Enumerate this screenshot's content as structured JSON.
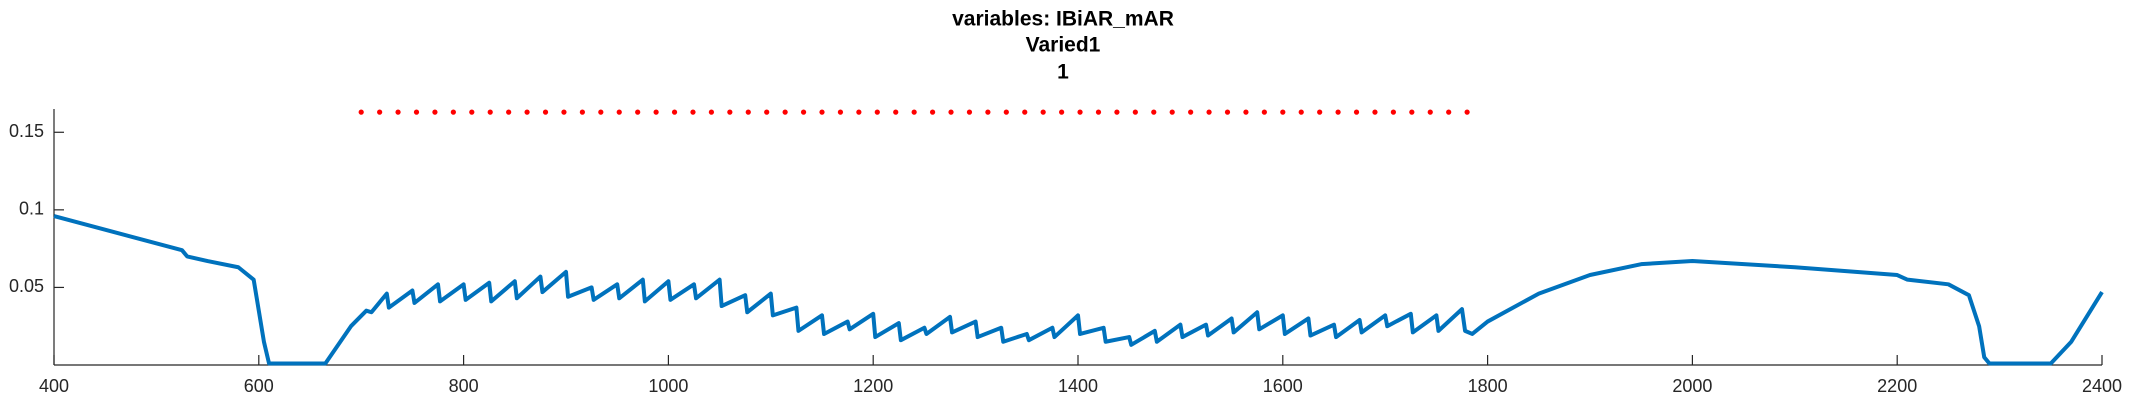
{
  "chart_data": {
    "type": "line",
    "title": "variables: IBiAR_mAR",
    "subtitle": "Varied1",
    "subtitle2": "1",
    "xlim": [
      400,
      2400
    ],
    "xticks": [
      400,
      600,
      800,
      1000,
      1200,
      1400,
      1600,
      1800,
      2000,
      2200,
      2400
    ],
    "ylim": [
      0,
      0.165
    ],
    "yticks": [
      0.05,
      0.1,
      0.15
    ],
    "series": [
      {
        "color": "#0072bd",
        "style": "line",
        "x": [
          400,
          525,
          530,
          550,
          580,
          595,
          605,
          610,
          665,
          690,
          705,
          710,
          725,
          727,
          750,
          752,
          775,
          777,
          800,
          802,
          825,
          827,
          850,
          852,
          875,
          877,
          900,
          902,
          925,
          927,
          950,
          952,
          975,
          977,
          1000,
          1002,
          1025,
          1027,
          1050,
          1052,
          1075,
          1077,
          1100,
          1102,
          1125,
          1127,
          1150,
          1152,
          1175,
          1177,
          1200,
          1202,
          1225,
          1227,
          1250,
          1252,
          1275,
          1277,
          1300,
          1302,
          1325,
          1327,
          1350,
          1352,
          1375,
          1377,
          1400,
          1402,
          1425,
          1427,
          1450,
          1452,
          1475,
          1477,
          1500,
          1502,
          1525,
          1527,
          1550,
          1552,
          1575,
          1577,
          1600,
          1602,
          1625,
          1627,
          1650,
          1652,
          1675,
          1677,
          1700,
          1702,
          1725,
          1727,
          1750,
          1752,
          1775,
          1778,
          1785,
          1800,
          1850,
          1900,
          1950,
          2000,
          2100,
          2200,
          2210,
          2250,
          2270,
          2280,
          2285,
          2290,
          2350,
          2370,
          2400
        ],
        "values": [
          0.096,
          0.074,
          0.07,
          0.067,
          0.063,
          0.055,
          0.015,
          0.001,
          0.001,
          0.025,
          0.035,
          0.034,
          0.046,
          0.037,
          0.048,
          0.04,
          0.052,
          0.041,
          0.052,
          0.042,
          0.053,
          0.041,
          0.054,
          0.043,
          0.057,
          0.047,
          0.06,
          0.044,
          0.05,
          0.042,
          0.052,
          0.043,
          0.055,
          0.041,
          0.054,
          0.042,
          0.052,
          0.043,
          0.055,
          0.038,
          0.045,
          0.034,
          0.046,
          0.032,
          0.037,
          0.022,
          0.032,
          0.02,
          0.028,
          0.023,
          0.033,
          0.018,
          0.027,
          0.016,
          0.024,
          0.02,
          0.031,
          0.021,
          0.028,
          0.018,
          0.024,
          0.015,
          0.02,
          0.016,
          0.024,
          0.018,
          0.032,
          0.02,
          0.024,
          0.015,
          0.018,
          0.013,
          0.022,
          0.015,
          0.026,
          0.018,
          0.026,
          0.019,
          0.03,
          0.021,
          0.034,
          0.023,
          0.032,
          0.02,
          0.03,
          0.019,
          0.026,
          0.018,
          0.029,
          0.021,
          0.032,
          0.025,
          0.033,
          0.021,
          0.032,
          0.022,
          0.036,
          0.022,
          0.02,
          0.028,
          0.046,
          0.058,
          0.065,
          0.067,
          0.063,
          0.058,
          0.055,
          0.052,
          0.045,
          0.025,
          0.005,
          0.001,
          0.001,
          0.015,
          0.047
        ]
      },
      {
        "color": "#ff0000",
        "style": "dots",
        "x": [
          700,
          718,
          736,
          754,
          772,
          790,
          808,
          826,
          844,
          862,
          880,
          898,
          916,
          934,
          952,
          970,
          988,
          1006,
          1024,
          1042,
          1060,
          1078,
          1096,
          1114,
          1132,
          1150,
          1168,
          1186,
          1204,
          1222,
          1240,
          1258,
          1276,
          1294,
          1312,
          1330,
          1348,
          1366,
          1384,
          1402,
          1420,
          1438,
          1456,
          1474,
          1492,
          1510,
          1528,
          1546,
          1564,
          1582,
          1600,
          1618,
          1636,
          1654,
          1672,
          1690,
          1708,
          1726,
          1744,
          1762,
          1780
        ],
        "values": [
          0.163,
          0.163,
          0.163,
          0.163,
          0.163,
          0.163,
          0.163,
          0.163,
          0.163,
          0.163,
          0.163,
          0.163,
          0.163,
          0.163,
          0.163,
          0.163,
          0.163,
          0.163,
          0.163,
          0.163,
          0.163,
          0.163,
          0.163,
          0.163,
          0.163,
          0.163,
          0.163,
          0.163,
          0.163,
          0.163,
          0.163,
          0.163,
          0.163,
          0.163,
          0.163,
          0.163,
          0.163,
          0.163,
          0.163,
          0.163,
          0.163,
          0.163,
          0.163,
          0.163,
          0.163,
          0.163,
          0.163,
          0.163,
          0.163,
          0.163,
          0.163,
          0.163,
          0.163,
          0.163,
          0.163,
          0.163,
          0.163,
          0.163,
          0.163,
          0.163,
          0.163
        ]
      }
    ]
  }
}
